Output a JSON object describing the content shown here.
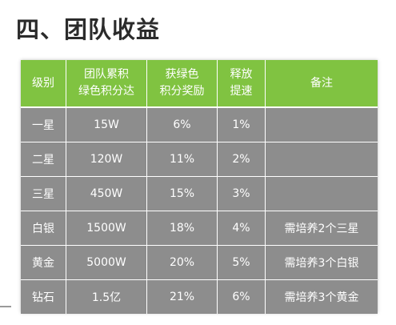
{
  "title": "四、团队收益",
  "table": {
    "headers": [
      [
        "级别"
      ],
      [
        "团队累积",
        "绿色积分达"
      ],
      [
        "获绿色",
        "积分奖励"
      ],
      [
        "释放",
        "提速"
      ],
      [
        "备注"
      ]
    ],
    "rows": [
      [
        "一星",
        "15W",
        "6%",
        "1%",
        ""
      ],
      [
        "二星",
        "120W",
        "11%",
        "2%",
        ""
      ],
      [
        "三星",
        "450W",
        "15%",
        "3%",
        ""
      ],
      [
        "白银",
        "1500W",
        "18%",
        "4%",
        "需培养2个三星"
      ],
      [
        "黄金",
        "5000W",
        "20%",
        "5%",
        "需培养3个白银"
      ],
      [
        "钻石",
        "1.5亿",
        "21%",
        "6%",
        "需培养3个黄金"
      ]
    ]
  },
  "colors": {
    "header_bg": "#80c341",
    "cell_bg": "#8d8d8d",
    "text_light": "#ffffff",
    "title_text": "#2b2b2b"
  }
}
